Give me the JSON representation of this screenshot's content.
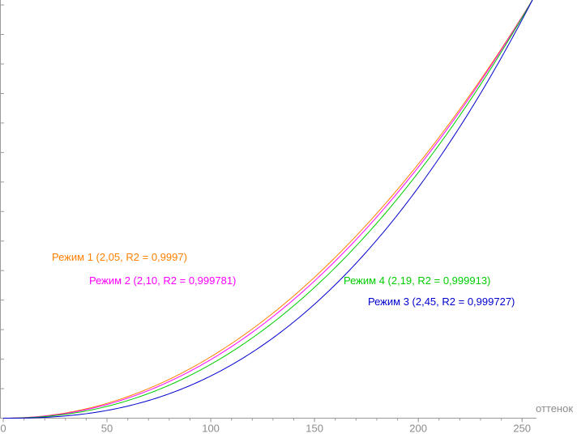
{
  "chart_data": {
    "type": "line",
    "title": "",
    "xlabel": "оттенок",
    "ylabel": "",
    "xlim": [
      0,
      255
    ],
    "ylim": [
      0,
      255
    ],
    "x_ticks": [
      0,
      50,
      100,
      150,
      200,
      250
    ],
    "x_minor_tick_step": 10,
    "y_minor_tick_step": 18,
    "y_tick_labels_shown": false,
    "grid": false,
    "legend_position": "inline-labels",
    "colors": {
      "axis": "#9a9a9a",
      "tick_label": "#8c8c8c",
      "background": "#ffffff"
    },
    "series": [
      {
        "id": "rezhim-1",
        "name": "Режим 1",
        "gamma": 2.05,
        "r2": "0,9997",
        "label": "Режим 1 (2,05, R2 = 0,9997)",
        "color": "#ff8000",
        "x": [
          0,
          25,
          50,
          75,
          100,
          125,
          150,
          175,
          200,
          225,
          250,
          255
        ],
        "y": [
          0,
          2.2,
          9.0,
          20.7,
          37.4,
          59.1,
          85.9,
          117.9,
          155.0,
          197.3,
          244.9,
          255
        ]
      },
      {
        "id": "rezhim-2",
        "name": "Режим 2",
        "gamma": 2.1,
        "r2": "0,999781",
        "label": "Режим 2 (2,10, R2 = 0,999781)",
        "color": "#ff00ff",
        "x": [
          0,
          25,
          50,
          75,
          100,
          125,
          150,
          175,
          200,
          225,
          250,
          255
        ],
        "y": [
          0,
          1.9,
          8.3,
          19.5,
          35.7,
          57.1,
          83.7,
          115.6,
          153.1,
          196.0,
          244.6,
          255
        ]
      },
      {
        "id": "rezhim-4",
        "name": "Режим 4",
        "gamma": 2.19,
        "r2": "0,999913",
        "label": "Режим 4 (2,19, R2 = 0,999913)",
        "color": "#00cc00",
        "x": [
          0,
          25,
          50,
          75,
          100,
          125,
          150,
          175,
          200,
          225,
          250,
          255
        ],
        "y": [
          0,
          1.6,
          7.2,
          17.5,
          32.8,
          53.5,
          79.8,
          111.8,
          149.8,
          193.8,
          244.2,
          255
        ]
      },
      {
        "id": "rezhim-3",
        "name": "Режим 3",
        "gamma": 2.45,
        "r2": "0,999727",
        "label": "Режим 3 (2,45, R2 = 0,999727)",
        "color": "#0000cc",
        "x": [
          0,
          25,
          50,
          75,
          100,
          125,
          150,
          175,
          200,
          225,
          250,
          255
        ],
        "y": [
          0,
          0.9,
          4.7,
          12.7,
          25.8,
          44.4,
          69.5,
          101.4,
          140.6,
          187.7,
          242.9,
          255
        ]
      }
    ]
  }
}
